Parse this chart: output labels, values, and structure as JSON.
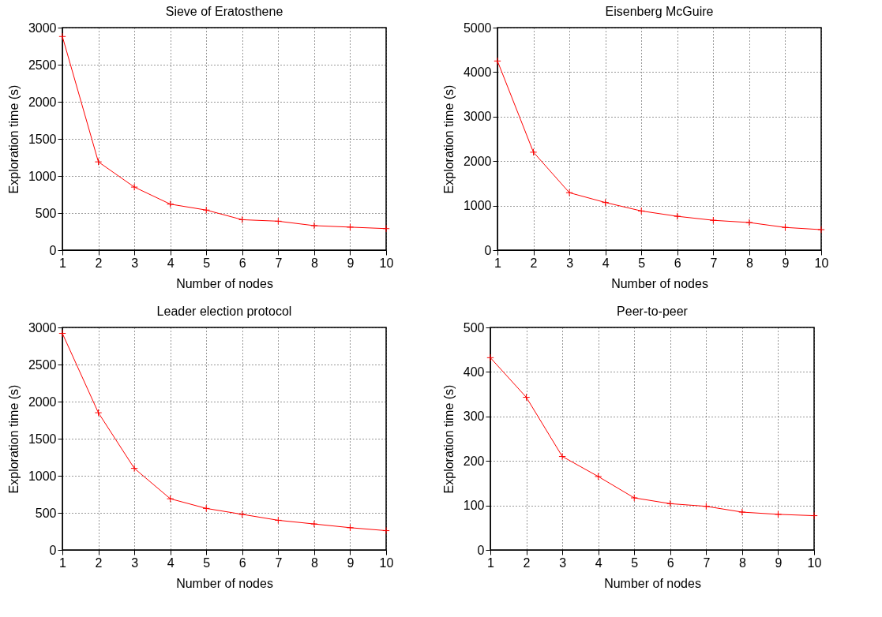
{
  "chart_data": [
    {
      "type": "line",
      "title": "Sieve of Eratosthene",
      "xlabel": "Number of nodes",
      "ylabel": "Exploration time (s)",
      "x": [
        1,
        2,
        3,
        4,
        5,
        6,
        7,
        8,
        9,
        10
      ],
      "xlim": [
        1,
        10
      ],
      "xticks": [
        1,
        2,
        3,
        4,
        5,
        6,
        7,
        8,
        9,
        10
      ],
      "ylim": [
        0,
        3000
      ],
      "yticks": [
        0,
        500,
        1000,
        1500,
        2000,
        2500,
        3000
      ],
      "grid": true,
      "marker": "cross",
      "line_style": "solid",
      "series": [
        {
          "color": "#ff0000",
          "values": [
            2880,
            1190,
            850,
            620,
            540,
            410,
            390,
            330,
            310,
            290
          ]
        }
      ]
    },
    {
      "type": "line",
      "title": "Eisenberg  McGuire",
      "xlabel": "Number of nodes",
      "ylabel": "Exploration time (s)",
      "x": [
        1,
        2,
        3,
        4,
        5,
        6,
        7,
        8,
        9,
        10
      ],
      "xlim": [
        1,
        10
      ],
      "xticks": [
        1,
        2,
        3,
        4,
        5,
        6,
        7,
        8,
        9,
        10
      ],
      "ylim": [
        0,
        5000
      ],
      "yticks": [
        0,
        1000,
        2000,
        3000,
        4000,
        5000
      ],
      "grid": true,
      "marker": "cross",
      "line_style": "solid",
      "series": [
        {
          "color": "#ff0000",
          "values": [
            4250,
            2200,
            1290,
            1070,
            880,
            760,
            670,
            620,
            510,
            460
          ]
        }
      ]
    },
    {
      "type": "line",
      "title": "Leader election protocol",
      "xlabel": "Number of nodes",
      "ylabel": "Exploration time (s)",
      "x": [
        1,
        2,
        3,
        4,
        5,
        6,
        7,
        8,
        9,
        10
      ],
      "xlim": [
        1,
        10
      ],
      "xticks": [
        1,
        2,
        3,
        4,
        5,
        6,
        7,
        8,
        9,
        10
      ],
      "ylim": [
        0,
        3000
      ],
      "yticks": [
        0,
        500,
        1000,
        1500,
        2000,
        2500,
        3000
      ],
      "grid": true,
      "marker": "cross",
      "line_style": "solid",
      "series": [
        {
          "color": "#ff0000",
          "values": [
            2920,
            1850,
            1100,
            690,
            560,
            480,
            400,
            350,
            300,
            260
          ]
        }
      ]
    },
    {
      "type": "line",
      "title": "Peer-to-peer",
      "xlabel": "Number of nodes",
      "ylabel": "Exploration time (s)",
      "x": [
        1,
        2,
        3,
        4,
        5,
        6,
        7,
        8,
        9,
        10
      ],
      "xlim": [
        1,
        10
      ],
      "xticks": [
        1,
        2,
        3,
        4,
        5,
        6,
        7,
        8,
        9,
        10
      ],
      "ylim": [
        0,
        500
      ],
      "yticks": [
        0,
        100,
        200,
        300,
        400,
        500
      ],
      "grid": true,
      "marker": "cross",
      "line_style": "solid",
      "series": [
        {
          "color": "#ff0000",
          "values": [
            432,
            343,
            210,
            165,
            117,
            104,
            98,
            85,
            80,
            77
          ]
        }
      ]
    }
  ]
}
